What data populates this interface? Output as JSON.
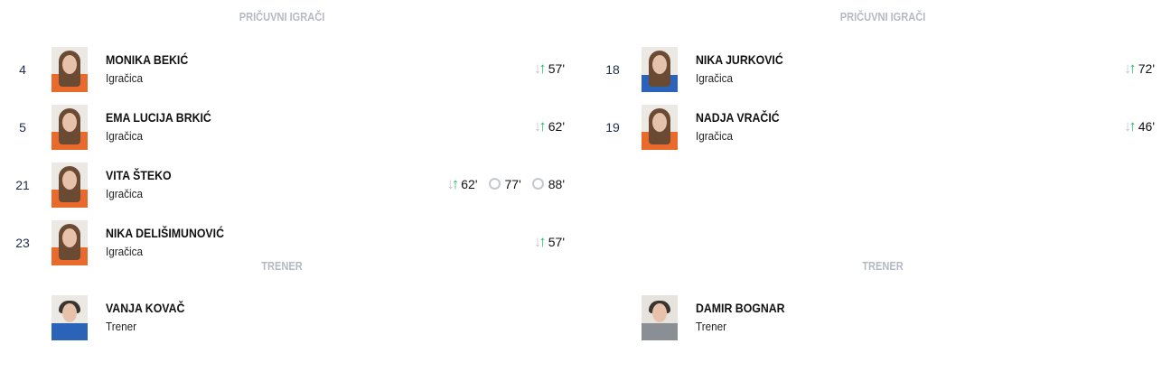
{
  "left": {
    "reserves_title": "PRIČUVNI IGRAČI",
    "players": [
      {
        "number": "4",
        "name": "MONIKA BEKIĆ",
        "role": "Igračica",
        "events": [
          {
            "type": "substitution-in",
            "minute": "57'"
          }
        ]
      },
      {
        "number": "5",
        "name": "EMA LUCIJA BRKIĆ",
        "role": "Igračica",
        "events": [
          {
            "type": "substitution-in",
            "minute": "62'"
          }
        ]
      },
      {
        "number": "21",
        "name": "VITA ŠTEKO",
        "role": "Igračica",
        "events": [
          {
            "type": "substitution-in",
            "minute": "62'"
          },
          {
            "type": "goal",
            "minute": "77'"
          },
          {
            "type": "goal",
            "minute": "88'"
          }
        ]
      },
      {
        "number": "23",
        "name": "NIKA DELIŠIMUNOVIĆ",
        "role": "Igračica",
        "events": [
          {
            "type": "substitution-in",
            "minute": "57'"
          }
        ]
      }
    ],
    "coach_title": "TRENER",
    "coach": {
      "name": "VANJA KOVAČ",
      "role": "Trener"
    }
  },
  "right": {
    "reserves_title": "PRIČUVNI IGRAČI",
    "players": [
      {
        "number": "18",
        "name": "NIKA JURKOVIĆ",
        "role": "Igračica",
        "events": [
          {
            "type": "substitution-in",
            "minute": "72'"
          }
        ]
      },
      {
        "number": "19",
        "name": "NADJA VRAČIĆ",
        "role": "Igračica",
        "events": [
          {
            "type": "substitution-in",
            "minute": "46'"
          }
        ]
      }
    ],
    "coach_title": "TRENER",
    "coach": {
      "name": "DAMIR BOGNAR",
      "role": "Trener"
    }
  },
  "colors": {
    "sub_in": "#1fbf6a",
    "muted": "#c5c9cf",
    "header": "#b4bac3"
  }
}
